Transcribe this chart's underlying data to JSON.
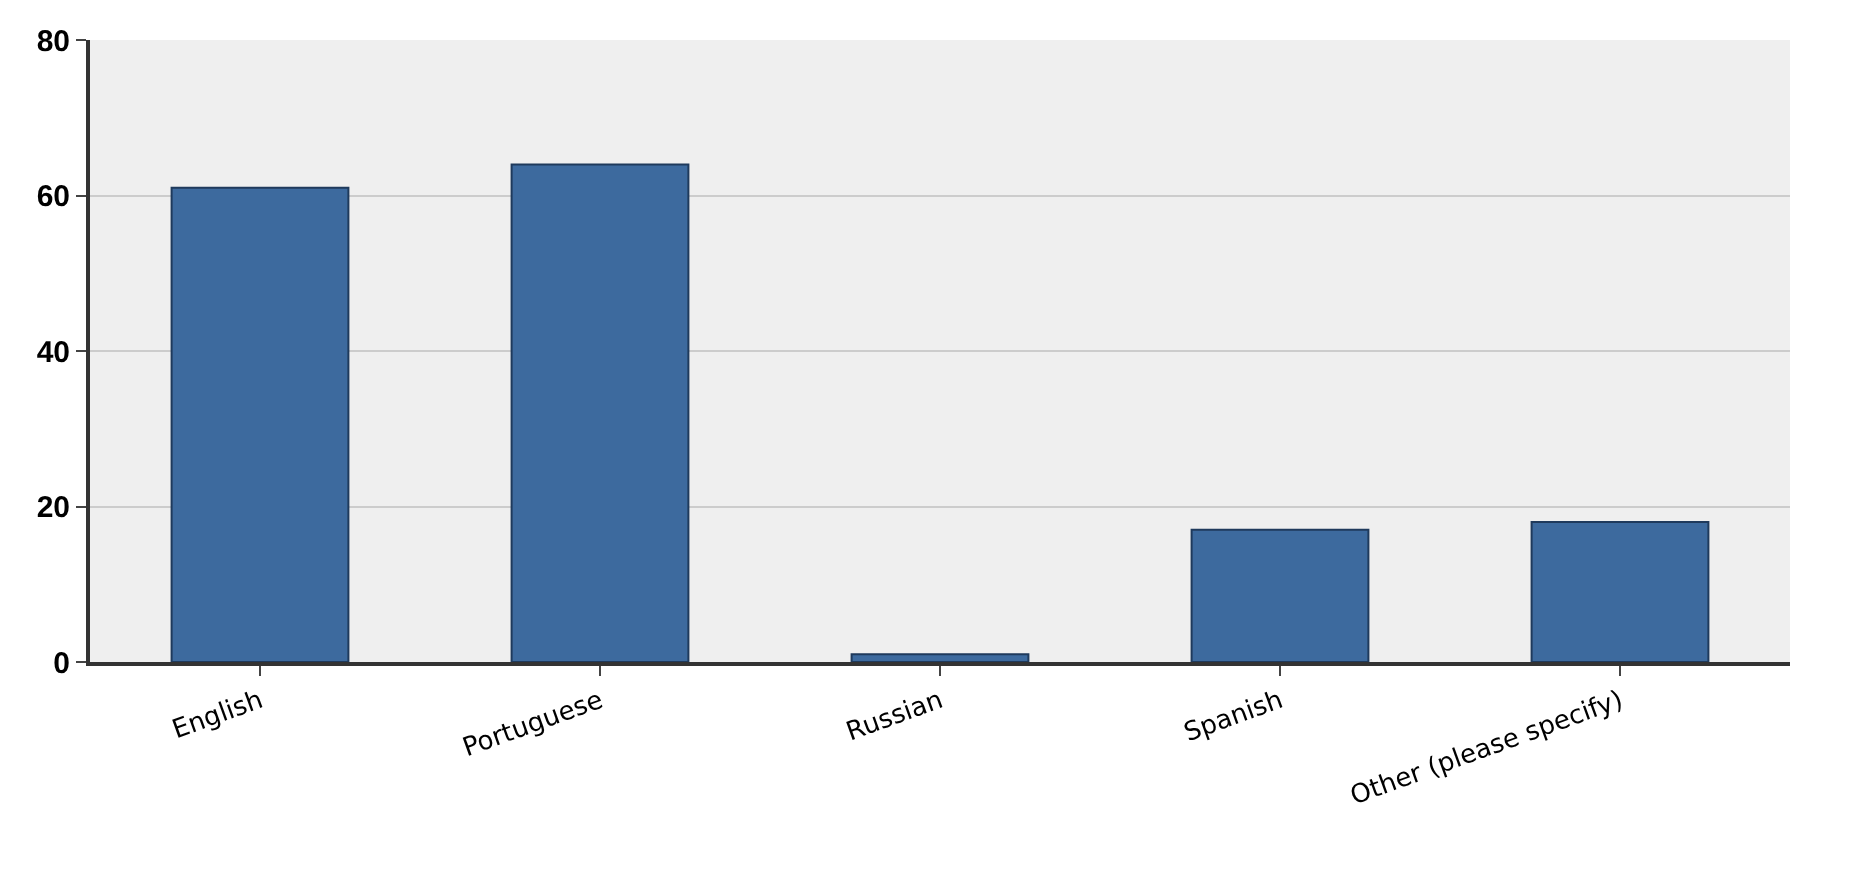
{
  "chart_data": {
    "type": "bar",
    "categories": [
      "English",
      "Portuguese",
      "Russian",
      "Spanish",
      "Other (please specify)"
    ],
    "values": [
      61,
      64,
      1,
      17,
      18
    ],
    "color": "#3d6a9e",
    "ylim": [
      0,
      80
    ],
    "yticks": [
      0,
      20,
      40,
      60,
      80
    ],
    "grid": "y"
  }
}
